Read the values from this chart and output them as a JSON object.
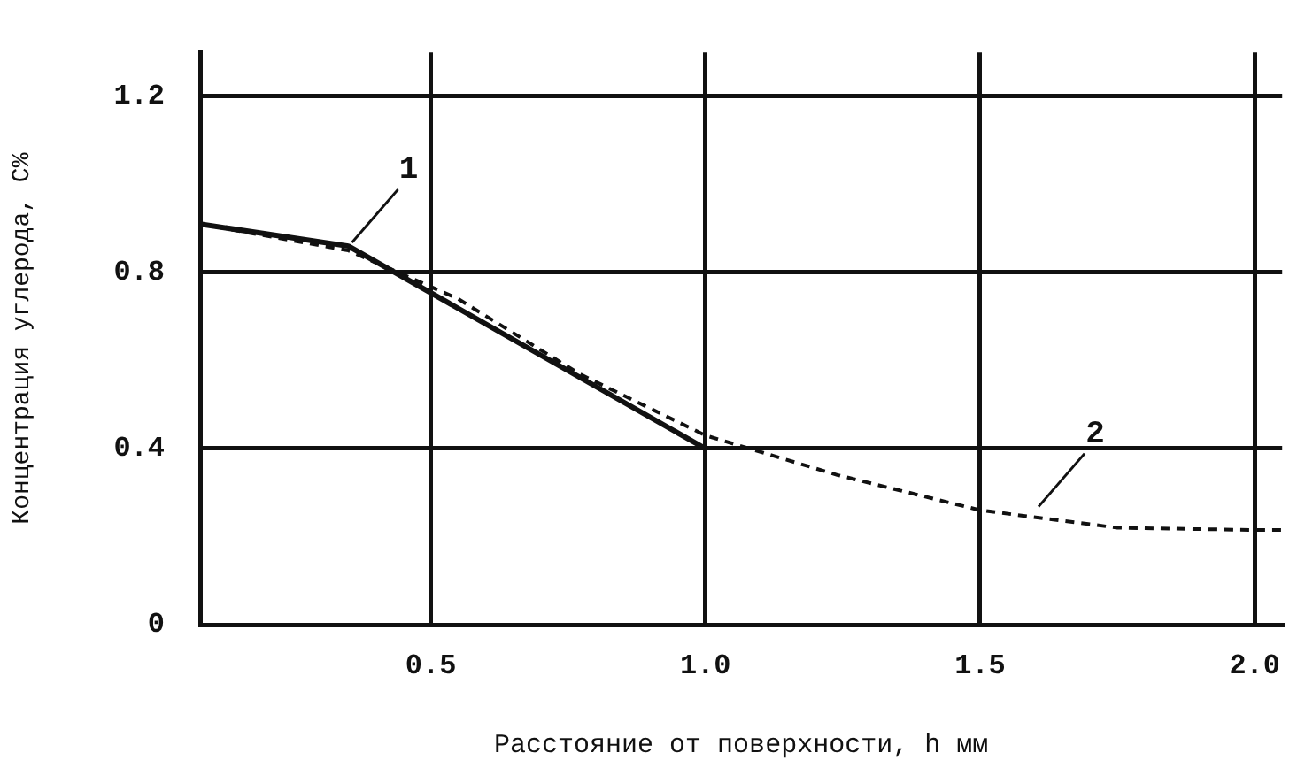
{
  "chart_data": {
    "type": "line",
    "xlabel": "Расстояние от поверхности, h мм",
    "ylabel": "Концентрация углерода, С%",
    "xlim": [
      0.08,
      2.05
    ],
    "xticks": [
      0.5,
      {
        "value": 1.0,
        "label": "1.0"
      },
      1.5,
      {
        "value": 2.0,
        "label": "2.0"
      }
    ],
    "ylim": [
      0,
      1.3
    ],
    "yticks": [
      0,
      0.4,
      0.8,
      1.2
    ],
    "grid": true,
    "legend": false,
    "series": [
      {
        "color": "#111111",
        "line_style": "solid",
        "x": [
          0.08,
          0.35,
          1.0
        ],
        "values": [
          0.91,
          0.86,
          0.4
        ]
      },
      {
        "color": "#111111",
        "line_style": "dashed",
        "x": [
          0.08,
          0.35,
          0.55,
          0.77,
          1.0,
          1.24,
          1.5,
          1.75,
          2.0,
          2.05
        ],
        "values": [
          0.91,
          0.85,
          0.74,
          0.57,
          0.43,
          0.34,
          0.26,
          0.22,
          0.215,
          0.215
        ]
      }
    ],
    "annotations": [
      {
        "text": "1",
        "x": 0.35,
        "y": 0.86
      },
      {
        "text": "2",
        "x": 1.6,
        "y": 0.26
      }
    ]
  }
}
